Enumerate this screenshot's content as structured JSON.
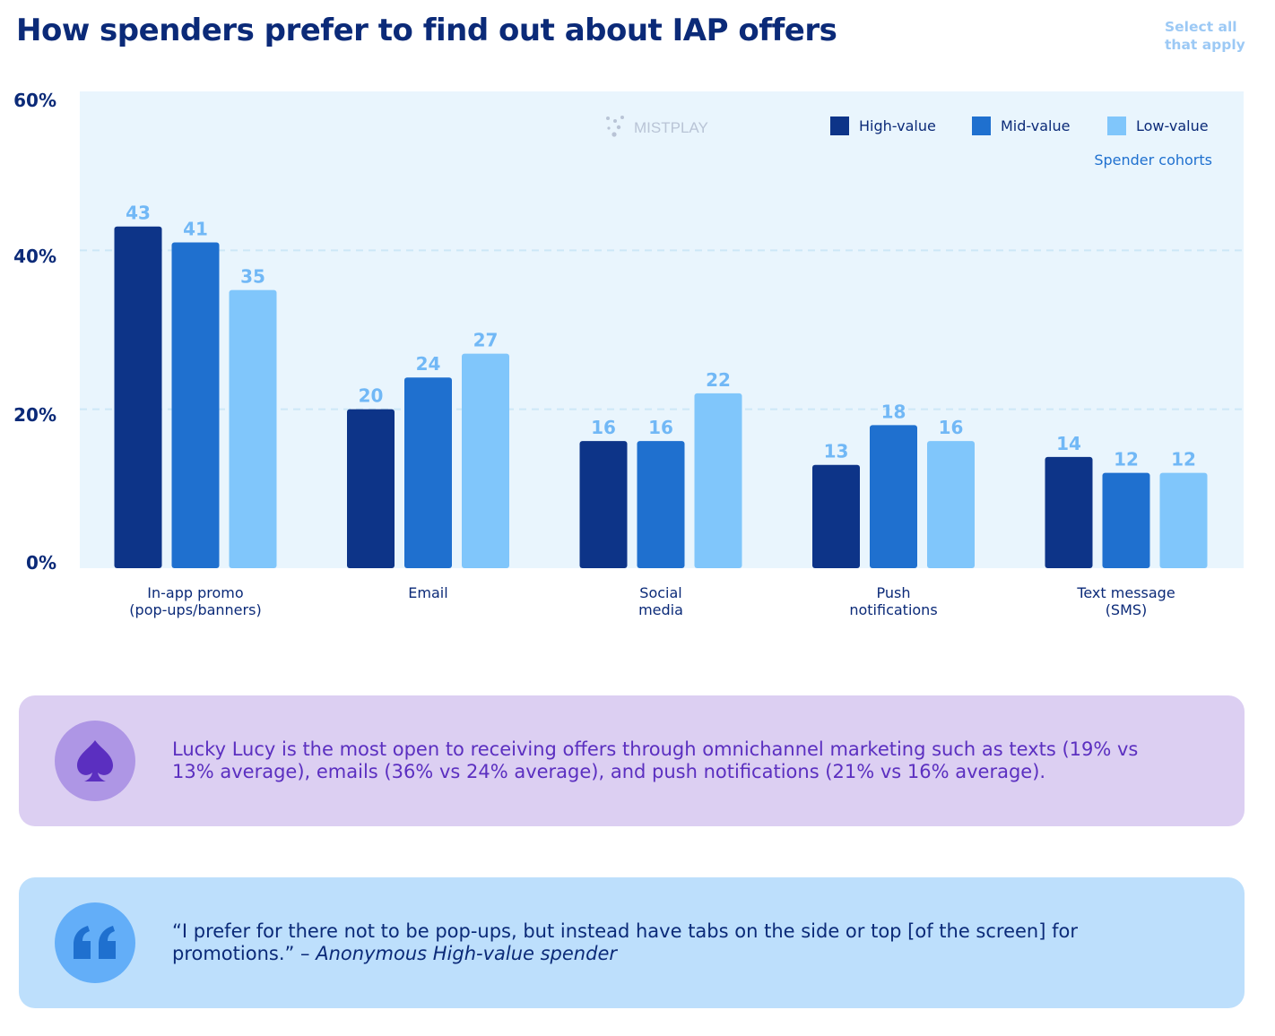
{
  "page": {
    "title": "How spenders prefer to find out about IAP offers",
    "note": "Select all that apply",
    "watermark": "MISTPLAY",
    "legend_title": "Spender cohorts"
  },
  "chart_data": {
    "type": "bar",
    "title": "How spenders prefer to find out about IAP offers",
    "categories": [
      "In-app promo\n(pop-ups/banners)",
      "Email",
      "Social\nmedia",
      "Push\nnotifications",
      "Text message\n(SMS)"
    ],
    "series": [
      {
        "name": "High-value",
        "color": "#0d3488",
        "values": [
          43,
          20,
          16,
          13,
          14
        ]
      },
      {
        "name": "Mid-value",
        "color": "#1f70cf",
        "values": [
          41,
          24,
          16,
          18,
          12
        ]
      },
      {
        "name": "Low-value",
        "color": "#80c6fb",
        "values": [
          35,
          27,
          22,
          16,
          12
        ]
      }
    ],
    "y_ticks": [
      "0%",
      "20%",
      "40%",
      "60%"
    ],
    "ylim": [
      0,
      60
    ],
    "legend_title": "Spender cohorts",
    "legend_position": "top-right",
    "grid": true,
    "label_color": "#71b8f6",
    "plot_bg": "#e9f5fd"
  },
  "callouts": {
    "persona": {
      "icon": "spade-icon",
      "text": "Lucky Lucy is the most open to receiving offers through omnichannel marketing such as texts (19% vs 13% average), emails (36% vs 24% average), and push notifications (21% vs 16% average)."
    },
    "quote": {
      "icon": "quote-icon",
      "text": "“I prefer for there not to be pop-ups, but instead have tabs on the side or top [of the screen] for promotions.” –",
      "attribution": "Anonymous High-value spender"
    }
  }
}
